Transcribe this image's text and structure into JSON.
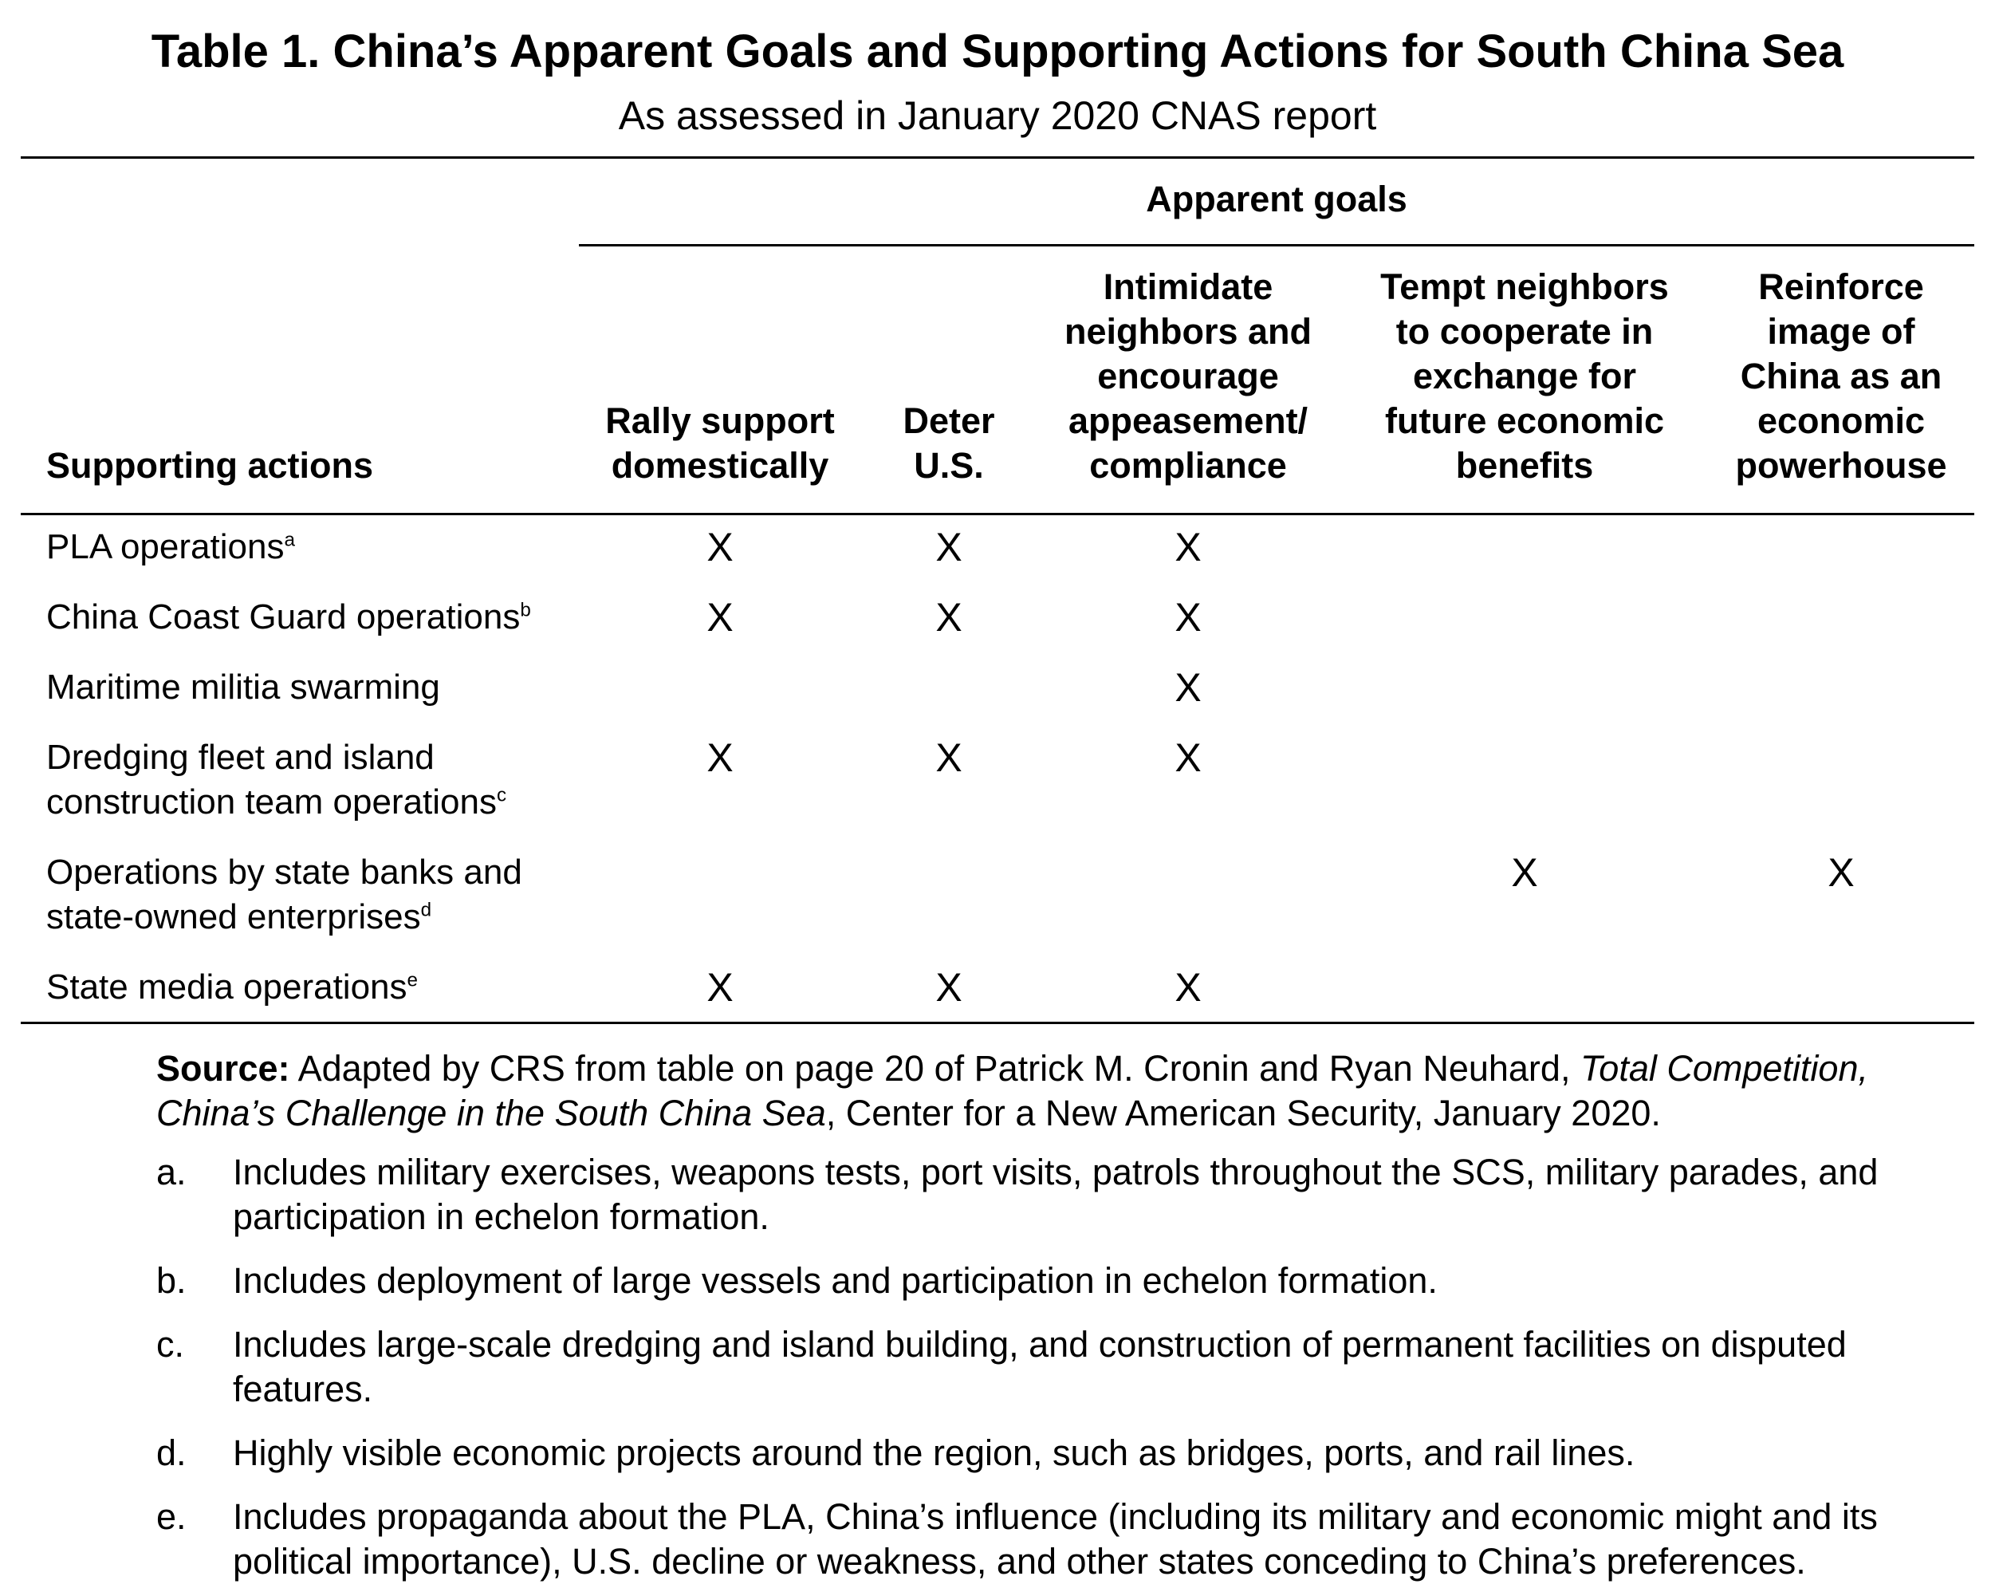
{
  "title": "Table 1. China’s Apparent Goals and Supporting Actions for South China Sea",
  "subtitle": "As assessed in January 2020 CNAS report",
  "header": {
    "group_label": "Apparent goals",
    "row_header": "Supporting actions",
    "columns": [
      {
        "lines": [
          "Rally support",
          "domestically"
        ]
      },
      {
        "lines": [
          "Deter",
          "U.S."
        ]
      },
      {
        "lines": [
          "Intimidate",
          "neighbors and",
          "encourage",
          "appeasement/",
          "compliance"
        ]
      },
      {
        "lines": [
          "Tempt neighbors",
          "to cooperate in",
          "exchange for",
          "future economic",
          "benefits"
        ]
      },
      {
        "lines": [
          "Reinforce",
          "image of",
          "China as an",
          "economic",
          "powerhouse"
        ]
      }
    ]
  },
  "rows": [
    {
      "lines": [
        "PLA operations"
      ],
      "sup": "a",
      "marks": [
        "X",
        "X",
        "X",
        "",
        ""
      ]
    },
    {
      "lines": [
        "China Coast Guard operations"
      ],
      "sup": "b",
      "marks": [
        "X",
        "X",
        "X",
        "",
        ""
      ]
    },
    {
      "lines": [
        "Maritime militia swarming"
      ],
      "sup": "",
      "marks": [
        "",
        "",
        "X",
        "",
        ""
      ]
    },
    {
      "lines": [
        "Dredging fleet and island",
        "construction team operations"
      ],
      "sup": "c",
      "marks": [
        "X",
        "X",
        "X",
        "",
        ""
      ]
    },
    {
      "lines": [
        "Operations by state banks and",
        "state-owned enterprises"
      ],
      "sup": "d",
      "marks": [
        "",
        "",
        "",
        "X",
        "X"
      ]
    },
    {
      "lines": [
        "State media operations"
      ],
      "sup": "e",
      "marks": [
        "X",
        "X",
        "X",
        "",
        ""
      ]
    }
  ],
  "source": {
    "label": "Source:",
    "text_1": " Adapted by CRS from table on page 20 of Patrick M. Cronin and Ryan Neuhard, ",
    "italic": "Total Competition, China’s Challenge in the South China Sea",
    "text_2": ", Center for a New American Security, January 2020."
  },
  "footnotes": [
    {
      "letter": "a.",
      "text": "Includes military exercises, weapons tests, port visits, patrols throughout the SCS, military parades, and participation in echelon formation."
    },
    {
      "letter": "b.",
      "text": "Includes deployment of large vessels and participation in echelon formation."
    },
    {
      "letter": "c.",
      "text": "Includes large-scale dredging and island building, and construction of permanent facilities on disputed features."
    },
    {
      "letter": "d.",
      "text": "Highly visible economic projects around the region, such as bridges, ports, and rail lines."
    },
    {
      "letter": "e.",
      "text": "Includes propaganda about the PLA, China’s influence (including its military and economic might and its political importance), U.S. decline or weakness, and other states conceding to China’s preferences."
    }
  ]
}
